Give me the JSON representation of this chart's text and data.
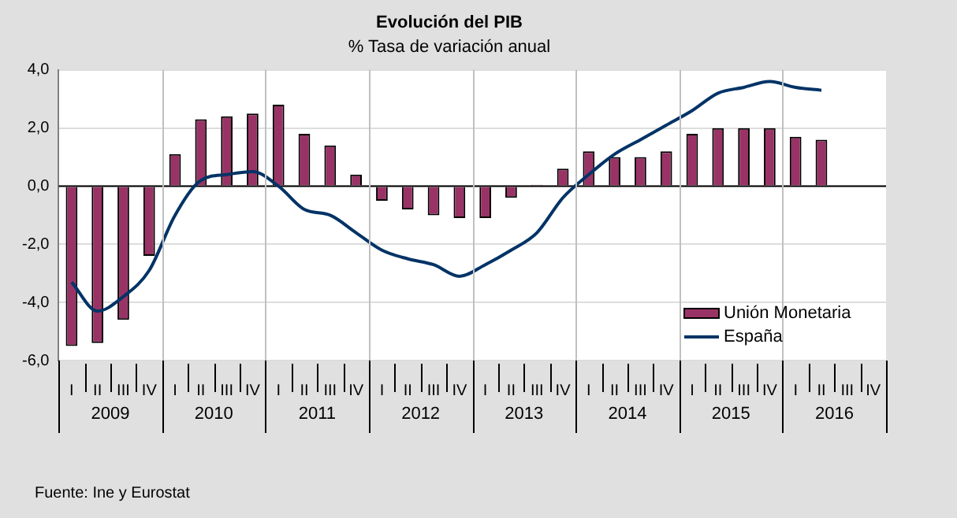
{
  "chart_data": {
    "type": "bar",
    "title": "Evolución del PIB",
    "subtitle": "% Tasa de variación anual",
    "categories": [
      "I",
      "II",
      "III",
      "IV",
      "I",
      "II",
      "III",
      "IV",
      "I",
      "II",
      "III",
      "IV",
      "I",
      "II",
      "III",
      "IV",
      "I",
      "II",
      "III",
      "IV",
      "I",
      "II",
      "III",
      "IV",
      "I",
      "II",
      "III",
      "IV",
      "I",
      "II",
      "III",
      "IV"
    ],
    "series": [
      {
        "name": "Unión Monetaria",
        "color": "#993366",
        "values": [
          -5.5,
          -5.4,
          -4.6,
          -2.4,
          1.1,
          2.3,
          2.4,
          2.5,
          2.8,
          1.8,
          1.4,
          0.4,
          -0.5,
          -0.8,
          -1.0,
          -1.1,
          -1.1,
          -0.4,
          0.05,
          0.6,
          1.2,
          1.0,
          1.0,
          1.2,
          1.8,
          2.0,
          2.0,
          2.0,
          1.7,
          1.6,
          null,
          null
        ]
      },
      {
        "name": "España",
        "type": "line",
        "color": "#003366",
        "values": [
          -3.3,
          -4.3,
          -3.8,
          -2.9,
          -1.0,
          0.2,
          0.4,
          0.5,
          0.0,
          -0.8,
          -1.0,
          -1.6,
          -2.2,
          -2.5,
          -2.7,
          -3.1,
          -2.7,
          -2.2,
          -1.6,
          -0.4,
          0.4,
          1.1,
          1.6,
          2.1,
          2.6,
          3.2,
          3.4,
          3.6,
          3.4,
          3.3,
          null,
          null
        ]
      }
    ],
    "ylim": [
      -6,
      4
    ],
    "yticks": [
      {
        "value": -6,
        "label": "-6,0"
      },
      {
        "value": -4,
        "label": "-4,0"
      },
      {
        "value": -2,
        "label": "-2,0"
      },
      {
        "value": 0,
        "label": "0,0"
      },
      {
        "value": 2,
        "label": "2,0"
      },
      {
        "value": 4,
        "label": "4,0"
      }
    ],
    "grid": true,
    "legend": "bottom right",
    "marker": "none",
    "line_style": "solid",
    "annotations": [
      "2009",
      "2010",
      "2011",
      "2012",
      "2013",
      "2014",
      "2015",
      "2016",
      "Fuente: Ine y Eurostat"
    ]
  }
}
